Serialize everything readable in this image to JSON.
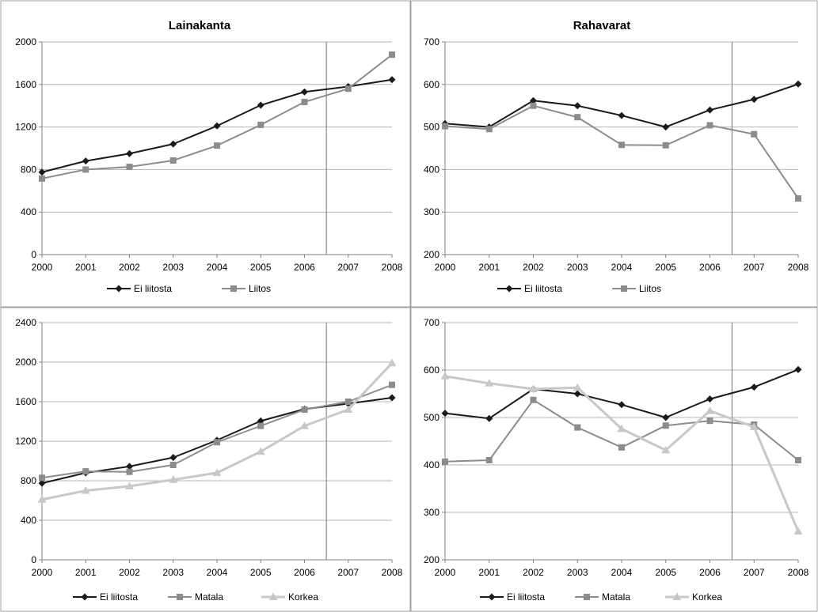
{
  "chart_data": [
    {
      "type": "line",
      "title": "Lainakanta",
      "xlabel": "",
      "ylabel": "",
      "x": [
        "2000",
        "2001",
        "2002",
        "2003",
        "2004",
        "2005",
        "2006",
        "2007",
        "2008"
      ],
      "ylim": [
        0,
        2000
      ],
      "yticks": [
        0,
        400,
        800,
        1200,
        1600,
        2000
      ],
      "grid": true,
      "legend": "bottom",
      "vline_between": [
        "2006",
        "2007"
      ],
      "series": [
        {
          "name": "Ei liitosta",
          "color": "#1a1a1a",
          "marker": "diamond",
          "values": [
            775,
            880,
            950,
            1040,
            1210,
            1405,
            1530,
            1580,
            1645
          ]
        },
        {
          "name": "Liitos",
          "color": "#8c8c8c",
          "marker": "square",
          "values": [
            715,
            800,
            825,
            885,
            1025,
            1220,
            1435,
            1560,
            1880
          ]
        }
      ]
    },
    {
      "type": "line",
      "title": "Rahavarat",
      "xlabel": "",
      "ylabel": "",
      "x": [
        "2000",
        "2001",
        "2002",
        "2003",
        "2004",
        "2005",
        "2006",
        "2007",
        "2008"
      ],
      "ylim": [
        200,
        700
      ],
      "yticks": [
        200,
        300,
        400,
        500,
        600,
        700
      ],
      "grid": true,
      "legend": "bottom",
      "vline_between": [
        "2006",
        "2007"
      ],
      "series": [
        {
          "name": "Ei liitosta",
          "color": "#1a1a1a",
          "marker": "diamond",
          "values": [
            508,
            500,
            562,
            550,
            527,
            500,
            540,
            565,
            601
          ]
        },
        {
          "name": "Liitos",
          "color": "#8c8c8c",
          "marker": "square",
          "values": [
            502,
            495,
            550,
            523,
            458,
            457,
            504,
            483,
            332
          ]
        }
      ]
    },
    {
      "type": "line",
      "title": "",
      "xlabel": "",
      "ylabel": "",
      "x": [
        "2000",
        "2001",
        "2002",
        "2003",
        "2004",
        "2005",
        "2006",
        "2007",
        "2008"
      ],
      "ylim": [
        0,
        2400
      ],
      "yticks": [
        0,
        400,
        800,
        1200,
        1600,
        2000,
        2400
      ],
      "grid": true,
      "legend": "bottom",
      "vline_between": [
        "2006",
        "2007"
      ],
      "series": [
        {
          "name": "Ei liitosta",
          "color": "#1a1a1a",
          "marker": "diamond",
          "values": [
            775,
            880,
            945,
            1035,
            1210,
            1405,
            1525,
            1580,
            1640
          ]
        },
        {
          "name": "Matala",
          "color": "#8c8c8c",
          "marker": "square",
          "values": [
            830,
            895,
            890,
            960,
            1190,
            1355,
            1520,
            1600,
            1770
          ]
        },
        {
          "name": "Korkea",
          "color": "#c8c8c8",
          "marker": "triangle",
          "values": [
            610,
            700,
            745,
            810,
            880,
            1095,
            1355,
            1520,
            1990
          ]
        }
      ]
    },
    {
      "type": "line",
      "title": "",
      "xlabel": "",
      "ylabel": "",
      "x": [
        "2000",
        "2001",
        "2002",
        "2003",
        "2004",
        "2005",
        "2006",
        "2007",
        "2008"
      ],
      "ylim": [
        200,
        700
      ],
      "yticks": [
        200,
        300,
        400,
        500,
        600,
        700
      ],
      "grid": true,
      "legend": "bottom",
      "vline_between": [
        "2006",
        "2007"
      ],
      "series": [
        {
          "name": "Ei liitosta",
          "color": "#1a1a1a",
          "marker": "diamond",
          "values": [
            509,
            498,
            560,
            550,
            527,
            500,
            539,
            564,
            601
          ]
        },
        {
          "name": "Matala",
          "color": "#8c8c8c",
          "marker": "square",
          "values": [
            407,
            410,
            537,
            479,
            437,
            483,
            493,
            485,
            410
          ]
        },
        {
          "name": "Korkea",
          "color": "#c8c8c8",
          "marker": "triangle",
          "values": [
            587,
            572,
            560,
            563,
            476,
            431,
            514,
            480,
            260
          ]
        }
      ]
    }
  ]
}
